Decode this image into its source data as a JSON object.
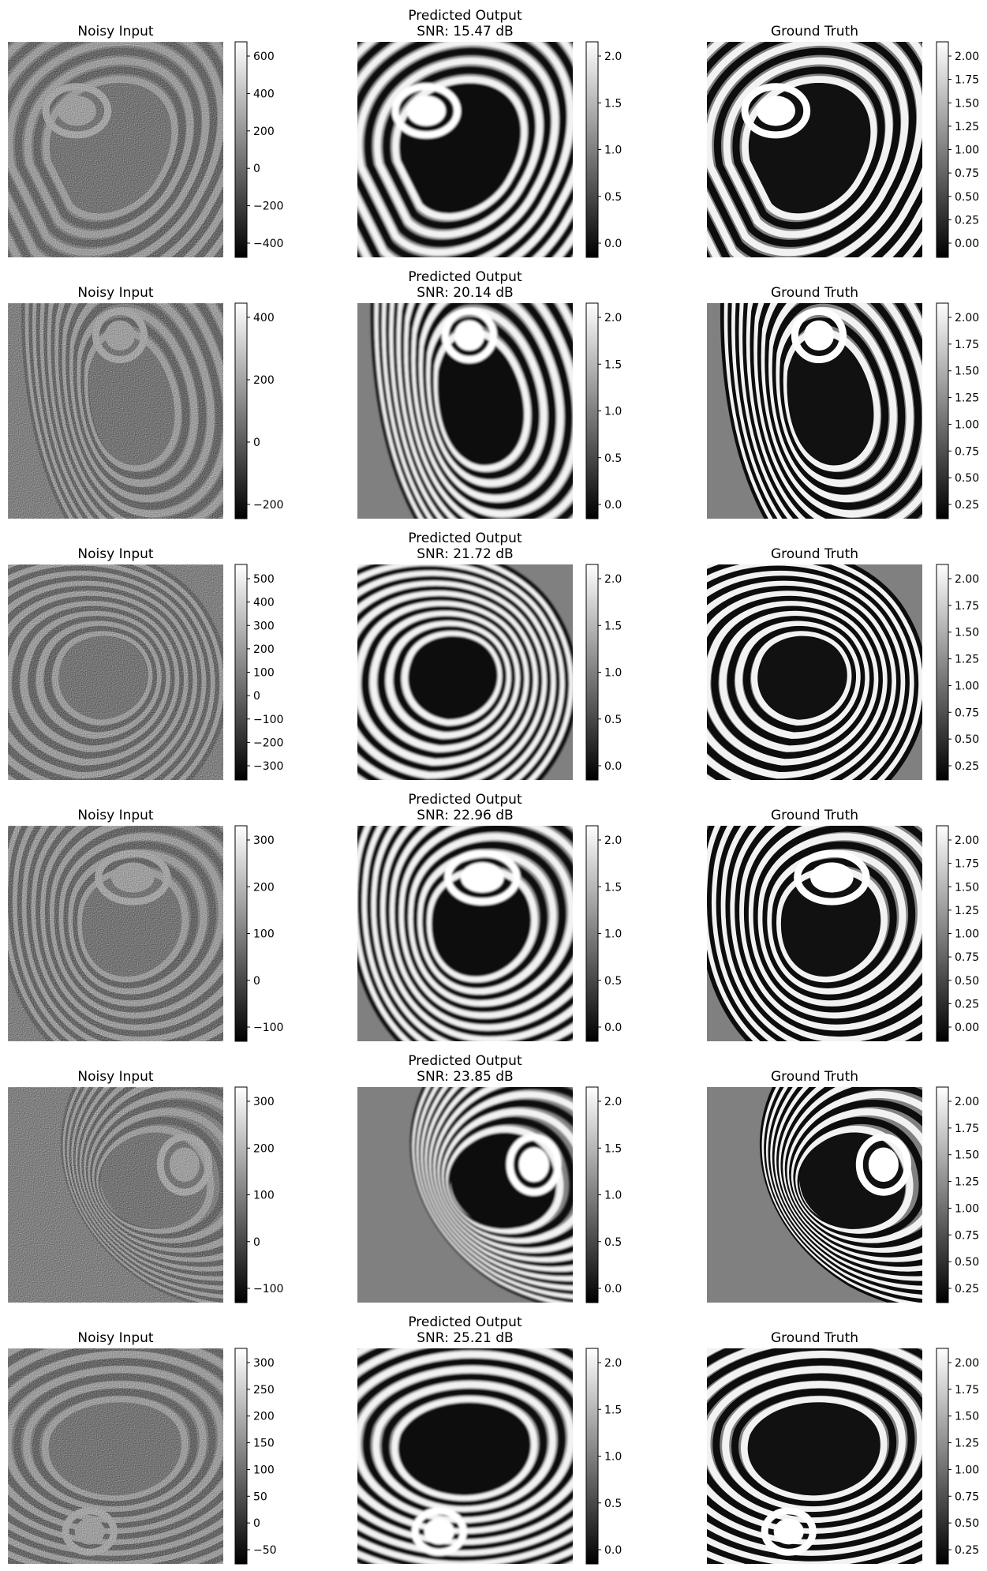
{
  "panel_titles": {
    "noisy": "Noisy Input",
    "predicted": "Predicted Output",
    "truth": "Ground Truth"
  },
  "rows": [
    {
      "snr_label": "SNR: 15.47 dB",
      "noisy_ticks": [
        "600",
        "400",
        "200",
        "0",
        "−200",
        "−400"
      ],
      "pred_ticks": [
        "2.0",
        "1.5",
        "1.0",
        "0.5",
        "0.0"
      ],
      "truth_ticks": [
        "2.00",
        "1.75",
        "1.50",
        "1.25",
        "1.00",
        "0.75",
        "0.50",
        "0.25",
        "0.00"
      ]
    },
    {
      "snr_label": "SNR: 20.14 dB",
      "noisy_ticks": [
        "400",
        "200",
        "0",
        "−200"
      ],
      "pred_ticks": [
        "2.0",
        "1.5",
        "1.0",
        "0.5",
        "0.0"
      ],
      "truth_ticks": [
        "2.00",
        "1.75",
        "1.50",
        "1.25",
        "1.00",
        "0.75",
        "0.50",
        "0.25"
      ]
    },
    {
      "snr_label": "SNR: 21.72 dB",
      "noisy_ticks": [
        "500",
        "400",
        "300",
        "200",
        "100",
        "0",
        "−100",
        "−200",
        "−300"
      ],
      "pred_ticks": [
        "2.0",
        "1.5",
        "1.0",
        "0.5",
        "0.0"
      ],
      "truth_ticks": [
        "2.00",
        "1.75",
        "1.50",
        "1.25",
        "1.00",
        "0.75",
        "0.50",
        "0.25"
      ]
    },
    {
      "snr_label": "SNR: 22.96 dB",
      "noisy_ticks": [
        "300",
        "200",
        "100",
        "0",
        "−100"
      ],
      "pred_ticks": [
        "2.0",
        "1.5",
        "1.0",
        "0.5",
        "0.0"
      ],
      "truth_ticks": [
        "2.00",
        "1.75",
        "1.50",
        "1.25",
        "1.00",
        "0.75",
        "0.50",
        "0.25",
        "0.00"
      ]
    },
    {
      "snr_label": "SNR: 23.85 dB",
      "noisy_ticks": [
        "300",
        "200",
        "100",
        "0",
        "−100"
      ],
      "pred_ticks": [
        "2.0",
        "1.5",
        "1.0",
        "0.5",
        "0.0"
      ],
      "truth_ticks": [
        "2.00",
        "1.75",
        "1.50",
        "1.25",
        "1.00",
        "0.75",
        "0.50",
        "0.25"
      ]
    },
    {
      "snr_label": "SNR: 25.21 dB",
      "noisy_ticks": [
        "300",
        "250",
        "200",
        "150",
        "100",
        "50",
        "0",
        "−50"
      ],
      "pred_ticks": [
        "2.0",
        "1.5",
        "1.0",
        "0.5",
        "0.0"
      ],
      "truth_ticks": [
        "2.00",
        "1.75",
        "1.50",
        "1.25",
        "1.00",
        "0.75",
        "0.50",
        "0.25"
      ]
    }
  ]
}
